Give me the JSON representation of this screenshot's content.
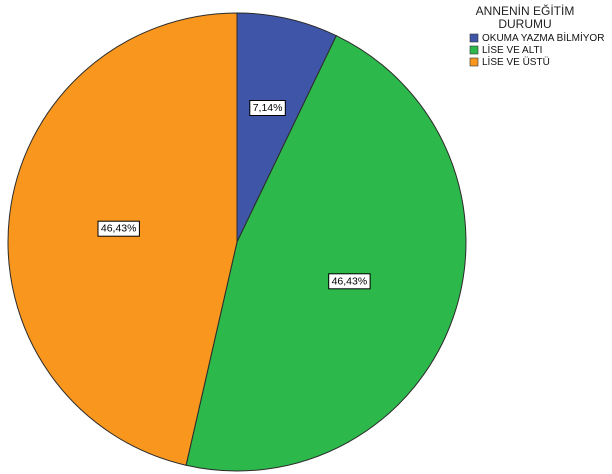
{
  "chart_data": {
    "type": "pie",
    "title": "",
    "legend": {
      "title_lines": [
        "ANNENİN EĞİTİM",
        "DURUMU"
      ],
      "placement": "top-right"
    },
    "slices": [
      {
        "name": "OKUMA YAZMA BİLMİYOR",
        "value": 7.14,
        "label": "7,14%",
        "color": "#3f56a8"
      },
      {
        "name": "LİSE VE ALTI",
        "value": 46.43,
        "label": "46,43%",
        "color": "#2db84b"
      },
      {
        "name": "LİSE VE ÜSTÜ",
        "value": 46.43,
        "label": "46,43%",
        "color": "#f8961e"
      }
    ],
    "start_angle_deg": 0,
    "direction": "clockwise"
  }
}
